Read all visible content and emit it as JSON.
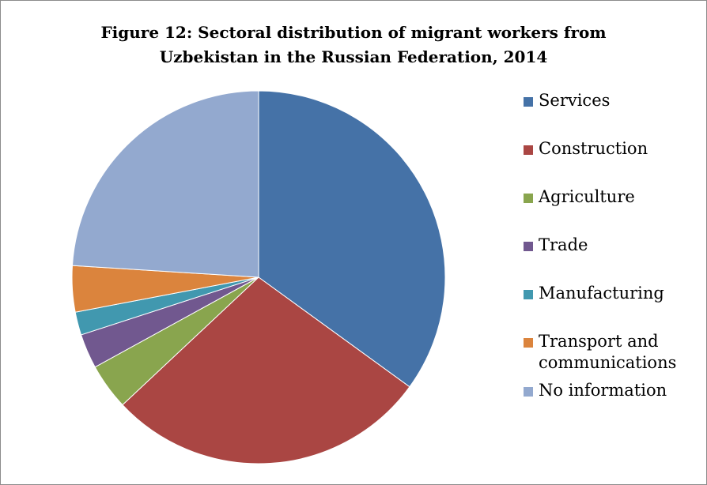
{
  "chart_data": {
    "type": "pie",
    "title_lines": [
      "Figure 12: Sectoral distribution of migrant workers from",
      "Uzbekistan in the Russian Federation, 2014"
    ],
    "legend_position": "right",
    "categories": [
      "Services",
      "Construction",
      "Agriculture",
      "Trade",
      "Manufacturing",
      "Transport and communications",
      "No information"
    ],
    "legend_lines": [
      [
        "Services"
      ],
      [
        "Construction"
      ],
      [
        "Agriculture"
      ],
      [
        "Trade"
      ],
      [
        "Manufacturing"
      ],
      [
        "Transport and",
        "communications"
      ],
      [
        "No information"
      ]
    ],
    "values": [
      35,
      28,
      4,
      3,
      2,
      4,
      24
    ],
    "colors": [
      "#4572a7",
      "#aa4643",
      "#89a54e",
      "#71588f",
      "#4198af",
      "#db843d",
      "#93a9cf"
    ]
  }
}
